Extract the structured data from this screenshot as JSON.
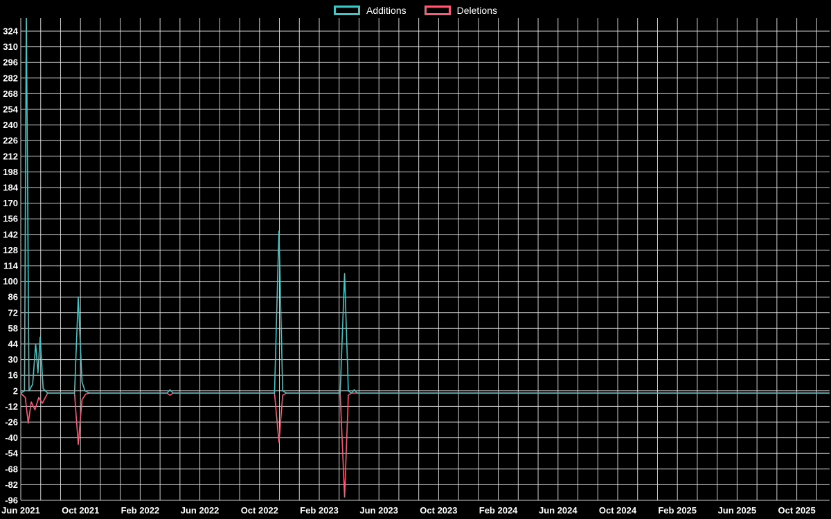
{
  "colors": {
    "background": "#000000",
    "grid": "#e6e6e6",
    "text": "#ffffff",
    "additions": "#46c3c3",
    "deletions": "#f85c78"
  },
  "chart_data": {
    "type": "line",
    "title": "",
    "xlabel": "",
    "ylabel": "",
    "legend_position": "top",
    "grid": true,
    "x_unit": "months since Jun 2021",
    "xlim": [
      0,
      54.2
    ],
    "ylim": [
      -97,
      335
    ],
    "x_tick_positions": [
      0,
      4,
      8,
      12,
      16,
      20,
      24,
      28,
      32,
      36,
      40,
      44,
      48,
      52
    ],
    "x_tick_labels": [
      "Jun 2021",
      "Oct 2021",
      "Feb 2022",
      "Jun 2022",
      "Oct 2022",
      "Feb 2023",
      "Jun 2023",
      "Oct 2023",
      "Feb 2024",
      "Jun 2024",
      "Oct 2024",
      "Feb 2025",
      "Jun 2025",
      "Oct 2025"
    ],
    "y_ticks": [
      324,
      310,
      296,
      282,
      268,
      254,
      240,
      226,
      212,
      198,
      184,
      170,
      156,
      142,
      128,
      114,
      100,
      86,
      72,
      58,
      44,
      30,
      16,
      2,
      -12,
      -26,
      -40,
      -54,
      -68,
      -82,
      -96
    ],
    "series": [
      {
        "name": "Additions",
        "color": "#46c3c3",
        "points": [
          [
            0,
            0
          ],
          [
            0.25,
            2
          ],
          [
            0.37,
            345
          ],
          [
            0.55,
            2
          ],
          [
            0.8,
            8
          ],
          [
            1.0,
            44
          ],
          [
            1.15,
            18
          ],
          [
            1.3,
            50
          ],
          [
            1.5,
            4
          ],
          [
            1.8,
            0
          ],
          [
            3.6,
            0
          ],
          [
            3.85,
            86
          ],
          [
            4.1,
            10
          ],
          [
            4.3,
            2
          ],
          [
            4.6,
            0
          ],
          [
            9.8,
            0
          ],
          [
            10.0,
            3
          ],
          [
            10.2,
            0
          ],
          [
            17.0,
            0
          ],
          [
            17.3,
            145
          ],
          [
            17.55,
            2
          ],
          [
            17.8,
            0
          ],
          [
            21.4,
            0
          ],
          [
            21.7,
            107
          ],
          [
            21.95,
            2
          ],
          [
            22.15,
            0
          ],
          [
            22.35,
            3
          ],
          [
            22.55,
            0
          ],
          [
            54.2,
            0
          ]
        ]
      },
      {
        "name": "Deletions",
        "color": "#f85c78",
        "points": [
          [
            0,
            0
          ],
          [
            0.3,
            -4
          ],
          [
            0.5,
            -27
          ],
          [
            0.7,
            -8
          ],
          [
            0.95,
            -15
          ],
          [
            1.2,
            -4
          ],
          [
            1.45,
            -9
          ],
          [
            1.8,
            0
          ],
          [
            3.6,
            0
          ],
          [
            3.85,
            -46
          ],
          [
            4.1,
            -6
          ],
          [
            4.35,
            -1
          ],
          [
            4.6,
            0
          ],
          [
            9.8,
            0
          ],
          [
            10.0,
            -2
          ],
          [
            10.2,
            0
          ],
          [
            17.0,
            0
          ],
          [
            17.3,
            -44
          ],
          [
            17.55,
            -2
          ],
          [
            17.8,
            0
          ],
          [
            21.4,
            0
          ],
          [
            21.7,
            -93
          ],
          [
            21.95,
            -2
          ],
          [
            22.15,
            0
          ],
          [
            54.2,
            0
          ]
        ]
      }
    ]
  }
}
